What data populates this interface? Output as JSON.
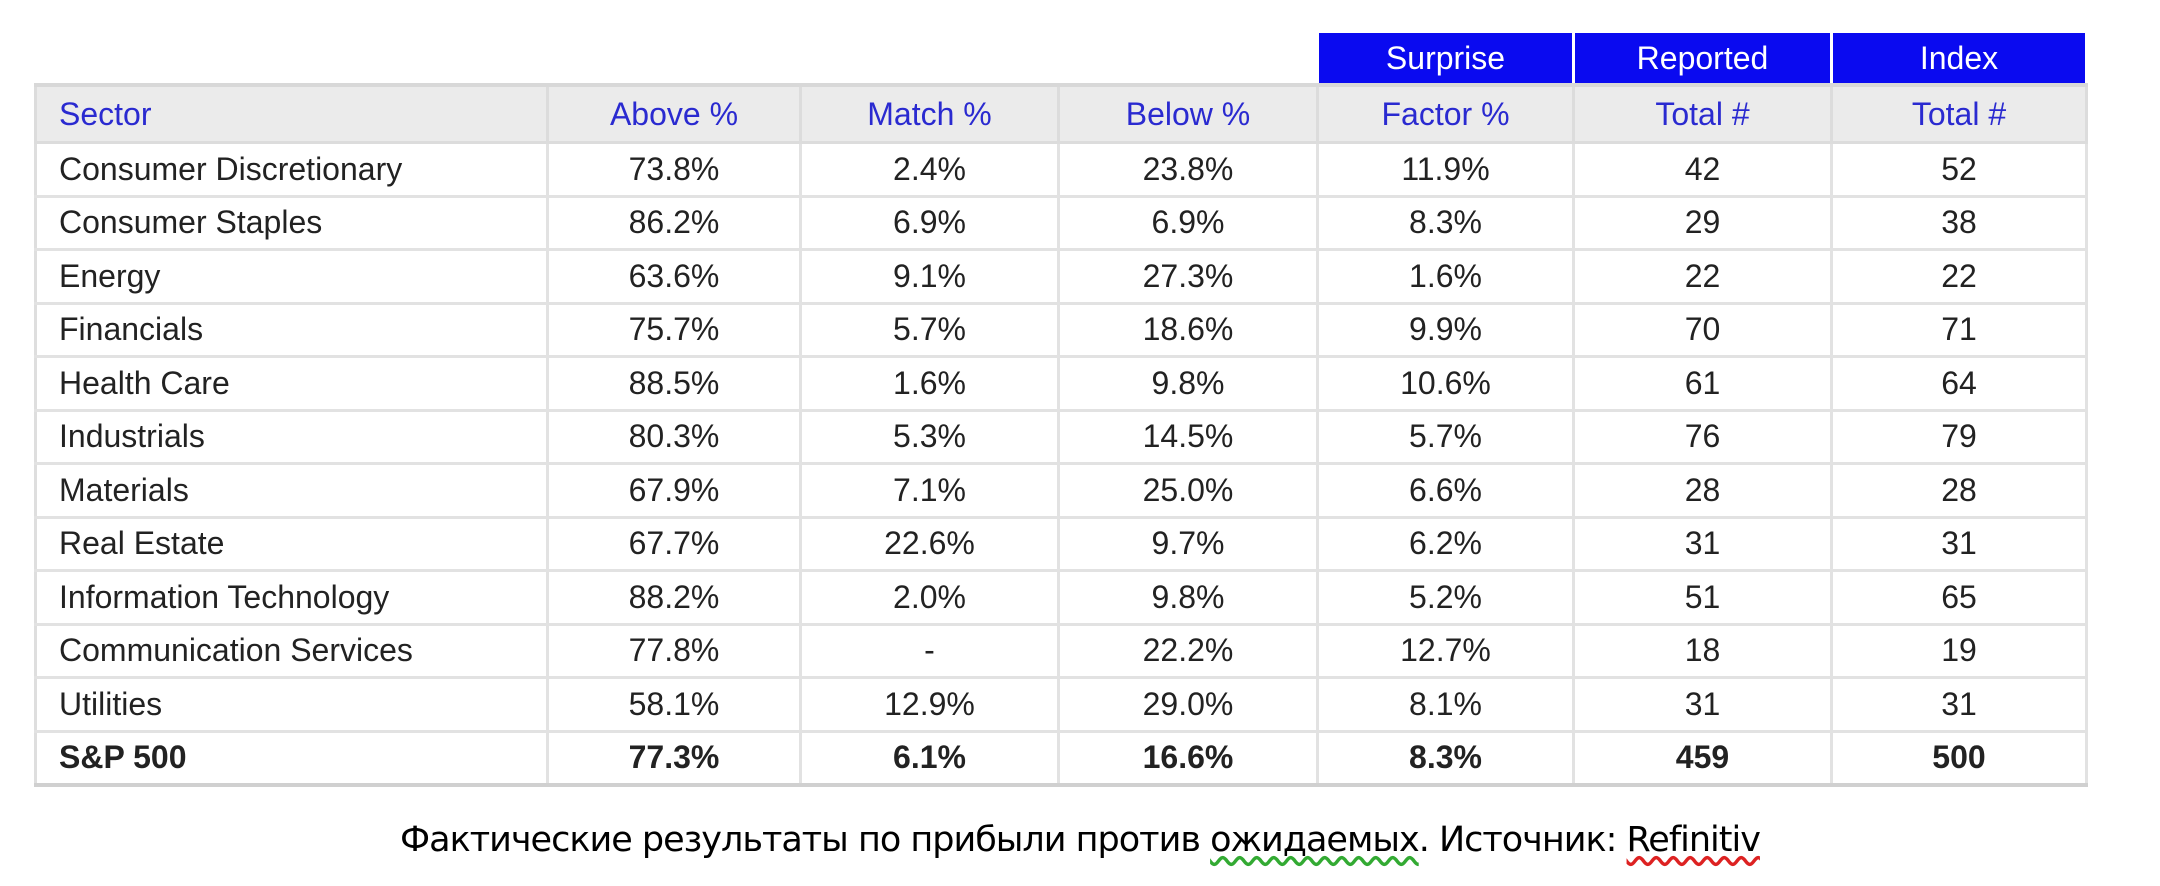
{
  "table": {
    "group_headers": [
      "",
      "",
      "",
      "",
      "Surprise",
      "Reported",
      "Index"
    ],
    "headers": [
      "Sector",
      "Above %",
      "Match %",
      "Below %",
      "Factor %",
      "Total #",
      "Total #"
    ],
    "rows": [
      [
        "Consumer Discretionary",
        "73.8%",
        "2.4%",
        "23.8%",
        "11.9%",
        "42",
        "52"
      ],
      [
        "Consumer Staples",
        "86.2%",
        "6.9%",
        "6.9%",
        "8.3%",
        "29",
        "38"
      ],
      [
        "Energy",
        "63.6%",
        "9.1%",
        "27.3%",
        "1.6%",
        "22",
        "22"
      ],
      [
        "Financials",
        "75.7%",
        "5.7%",
        "18.6%",
        "9.9%",
        "70",
        "71"
      ],
      [
        "Health Care",
        "88.5%",
        "1.6%",
        "9.8%",
        "10.6%",
        "61",
        "64"
      ],
      [
        "Industrials",
        "80.3%",
        "5.3%",
        "14.5%",
        "5.7%",
        "76",
        "79"
      ],
      [
        "Materials",
        "67.9%",
        "7.1%",
        "25.0%",
        "6.6%",
        "28",
        "28"
      ],
      [
        "Real Estate",
        "67.7%",
        "22.6%",
        "9.7%",
        "6.2%",
        "31",
        "31"
      ],
      [
        "Information Technology",
        "88.2%",
        "2.0%",
        "9.8%",
        "5.2%",
        "51",
        "65"
      ],
      [
        "Communication Services",
        "77.8%",
        "-",
        "22.2%",
        "12.7%",
        "18",
        "19"
      ],
      [
        "Utilities",
        "58.1%",
        "12.9%",
        "29.0%",
        "8.1%",
        "31",
        "31"
      ]
    ],
    "total": [
      "S&P 500",
      "77.3%",
      "6.1%",
      "16.6%",
      "8.3%",
      "459",
      "500"
    ]
  },
  "caption": {
    "part1": "Фактические результаты по прибыли против ",
    "part2": "ожидаемых",
    "part3": ". Источник: ",
    "part4": "Refinitiv"
  },
  "colors": {
    "header_blue": "#0a0af0",
    "header_text": "#2a2ad0"
  }
}
